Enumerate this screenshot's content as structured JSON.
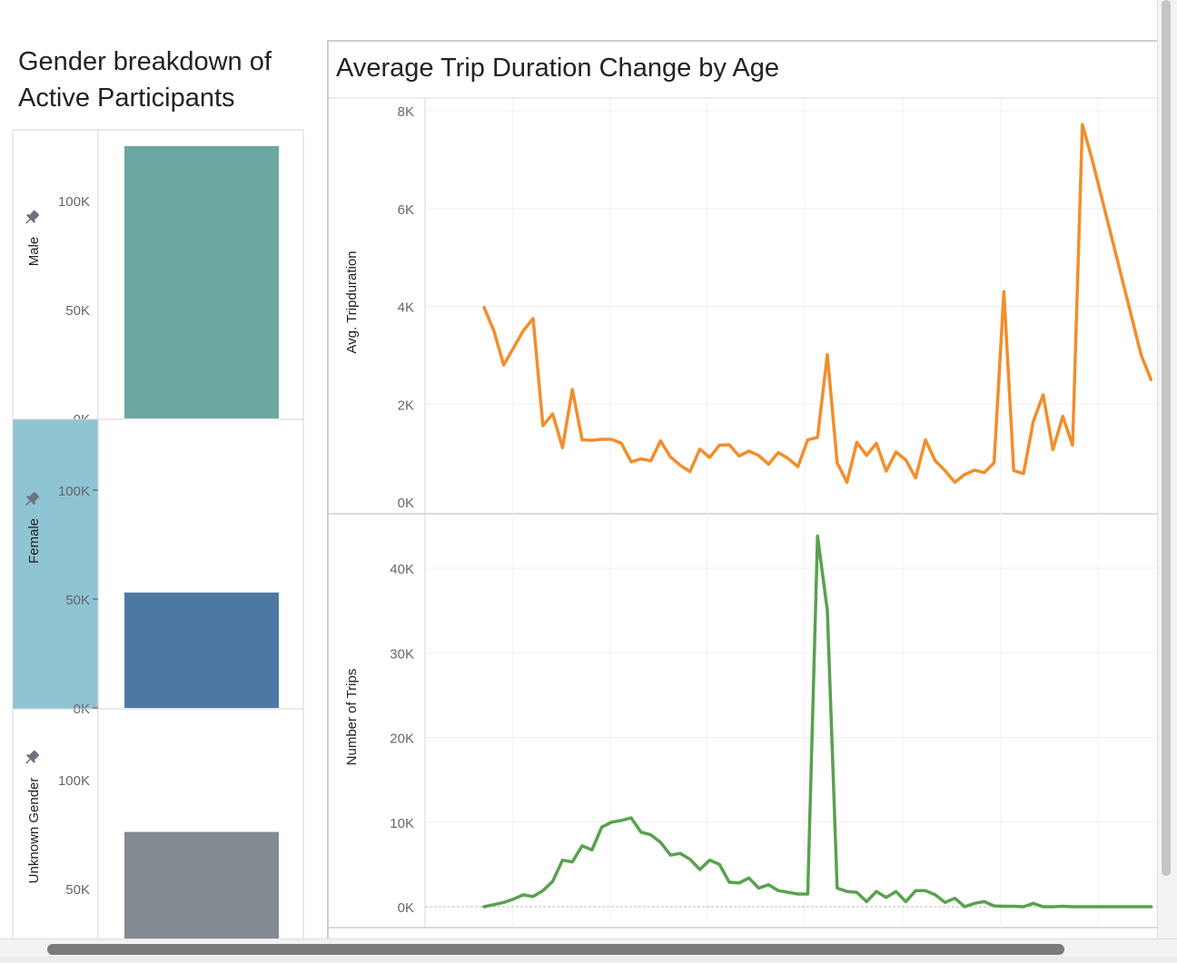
{
  "left_chart": {
    "title": "Gender breakdown of Active Participants",
    "pin_icon": "pushpin-icon",
    "colors": {
      "Male": "#6aa8a1",
      "Female": "#4e78a4",
      "Unknown Gender": "#838a92",
      "selected_band": "#8fc4d3"
    },
    "selected_panel": "Female"
  },
  "right_chart": {
    "title": "Average Trip Duration Change by Age",
    "line_colors": {
      "duration": "#f28e2b",
      "trips": "#59a14f"
    }
  },
  "chart_data": [
    {
      "type": "bar",
      "title": "Gender breakdown of Active Participants",
      "categories": [
        "Male",
        "Female",
        "Unknown Gender"
      ],
      "values": [
        125000,
        53000,
        76000
      ],
      "ylim": [
        0,
        130000
      ],
      "yticks": [
        0,
        50000,
        100000
      ],
      "ytick_labels": [
        "0K",
        "50K",
        "100K"
      ],
      "grid": false
    },
    {
      "type": "line",
      "title": "Average Trip Duration Change by Age",
      "ylabel": "Avg. Tripduration",
      "ylim": [
        0,
        8000
      ],
      "yticks": [
        0,
        2000,
        4000,
        6000,
        8000
      ],
      "ytick_labels": [
        "0K",
        "2K",
        "4K",
        "6K",
        "8K"
      ],
      "x": [
        1,
        2,
        3,
        4,
        5,
        6,
        7,
        8,
        9,
        10,
        11,
        12,
        13,
        14,
        15,
        16,
        17,
        18,
        19,
        20,
        21,
        22,
        23,
        24,
        25,
        26,
        27,
        28,
        29,
        30,
        31,
        32,
        33,
        34,
        35,
        36,
        37,
        38,
        39,
        40,
        41,
        42,
        43,
        44,
        45,
        46,
        47,
        48,
        49,
        50,
        51,
        52,
        53,
        54,
        55,
        56,
        57,
        58,
        59,
        60,
        61,
        62,
        63,
        64,
        65,
        66,
        67,
        68,
        69
      ],
      "values": [
        3980,
        3500,
        2800,
        3150,
        3500,
        3750,
        1560,
        1800,
        1110,
        2300,
        1270,
        1260,
        1280,
        1280,
        1200,
        820,
        880,
        840,
        1250,
        920,
        750,
        620,
        1080,
        910,
        1160,
        1170,
        940,
        1040,
        950,
        770,
        1010,
        890,
        720,
        1270,
        1320,
        3010,
        800,
        400,
        1220,
        950,
        1200,
        630,
        1020,
        860,
        490,
        1270,
        840,
        640,
        400,
        560,
        650,
        600,
        800,
        4300,
        640,
        580,
        1650,
        2190,
        1070,
        1750,
        1160,
        7720,
        7000,
        6200,
        5400,
        4600,
        3800,
        3000,
        2500
      ],
      "grid": true
    },
    {
      "type": "line",
      "ylabel": "Number of Trips",
      "ylim": [
        -4000,
        46000
      ],
      "yticks": [
        0,
        10000,
        20000,
        30000,
        40000
      ],
      "ytick_labels": [
        "0K",
        "10K",
        "20K",
        "30K",
        "40K"
      ],
      "x": [
        1,
        2,
        3,
        4,
        5,
        6,
        7,
        8,
        9,
        10,
        11,
        12,
        13,
        14,
        15,
        16,
        17,
        18,
        19,
        20,
        21,
        22,
        23,
        24,
        25,
        26,
        27,
        28,
        29,
        30,
        31,
        32,
        33,
        34,
        35,
        36,
        37,
        38,
        39,
        40,
        41,
        42,
        43,
        44,
        45,
        46,
        47,
        48,
        49,
        50,
        51,
        52,
        53,
        54,
        55,
        56,
        57,
        58,
        59,
        60,
        61,
        62,
        63,
        64,
        65,
        66,
        67,
        68,
        69
      ],
      "values": [
        0,
        250,
        500,
        900,
        1400,
        1200,
        1900,
        3000,
        5500,
        5300,
        7200,
        6700,
        9400,
        10000,
        10200,
        10500,
        8800,
        8500,
        7600,
        6100,
        6300,
        5600,
        4400,
        5500,
        5000,
        2900,
        2800,
        3400,
        2200,
        2600,
        1900,
        1700,
        1500,
        1500,
        43800,
        35000,
        2200,
        1800,
        1700,
        600,
        1800,
        1100,
        1800,
        600,
        1900,
        1900,
        1400,
        500,
        1000,
        0,
        400,
        600,
        100,
        50,
        50,
        0,
        400,
        0,
        0,
        50,
        0,
        0,
        0,
        0,
        0,
        0,
        0,
        0,
        0
      ],
      "grid": true
    }
  ]
}
